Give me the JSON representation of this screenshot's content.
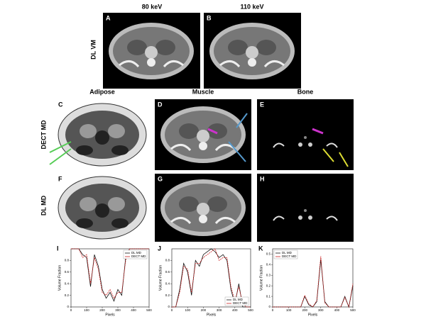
{
  "top_columns": [
    "80 keV",
    "110 keV"
  ],
  "top_row": "DL VM",
  "mid_columns": [
    "Adipose",
    "Muscle",
    "Bone"
  ],
  "mid_rows": [
    "DECT MD",
    "DL MD"
  ],
  "panel_labels": [
    "A",
    "B",
    "C",
    "D",
    "E",
    "F",
    "G",
    "H"
  ],
  "plots": [
    {
      "label": "I",
      "xlabel": "Pixels",
      "ylabel": "Volume Fraction",
      "legend": "top-right",
      "x": [
        0,
        25,
        50,
        75,
        100,
        125,
        150,
        175,
        200,
        225,
        250,
        275,
        300,
        325,
        350,
        375,
        400,
        425,
        450,
        475,
        500
      ],
      "xlim": [
        0,
        500
      ],
      "xticks": [
        0,
        100,
        200,
        300,
        400,
        500
      ],
      "ylim": [
        0,
        1
      ],
      "yticks": [
        0,
        0.2,
        0.4,
        0.6,
        0.8
      ],
      "series": [
        {
          "name": "DL MD",
          "color": "#111111",
          "values": [
            1,
            1,
            1,
            0.9,
            0.85,
            0.35,
            0.9,
            0.7,
            0.3,
            0.15,
            0.25,
            0.1,
            0.3,
            0.2,
            0.85,
            1,
            1,
            1,
            1,
            1,
            1
          ]
        },
        {
          "name": "DECT MD",
          "color": "#cc2222",
          "values": [
            1,
            1,
            1,
            0.85,
            0.9,
            0.4,
            0.85,
            0.65,
            0.25,
            0.2,
            0.3,
            0.15,
            0.25,
            0.25,
            0.8,
            1,
            1,
            1,
            1,
            1,
            1
          ]
        }
      ]
    },
    {
      "label": "J",
      "xlabel": "Pixels",
      "ylabel": "Volume Fraction",
      "legend": "bottom-right",
      "x": [
        0,
        25,
        50,
        75,
        100,
        125,
        150,
        175,
        200,
        225,
        250,
        275,
        300,
        325,
        350,
        375,
        400,
        425,
        450,
        475,
        500
      ],
      "xlim": [
        0,
        500
      ],
      "xticks": [
        0,
        100,
        200,
        300,
        400,
        500
      ],
      "ylim": [
        0,
        1
      ],
      "yticks": [
        0,
        0.2,
        0.4,
        0.6,
        0.8
      ],
      "series": [
        {
          "name": "DL MD",
          "color": "#111111",
          "values": [
            0,
            0,
            0.3,
            0.75,
            0.6,
            0.2,
            0.8,
            0.7,
            0.9,
            0.95,
            1,
            0.95,
            0.85,
            0.9,
            0.8,
            0.3,
            0.05,
            0.4,
            0,
            0,
            0
          ]
        },
        {
          "name": "DECT MD",
          "color": "#cc2222",
          "values": [
            0,
            0,
            0.25,
            0.7,
            0.65,
            0.25,
            0.75,
            0.75,
            0.85,
            0.9,
            0.95,
            1,
            0.8,
            0.85,
            0.85,
            0.35,
            0.1,
            0.35,
            0.05,
            0,
            0
          ]
        }
      ]
    },
    {
      "label": "K",
      "xlabel": "Pixels",
      "ylabel": "Volume Fraction",
      "legend": "top-left",
      "x": [
        0,
        25,
        50,
        75,
        100,
        125,
        150,
        175,
        200,
        225,
        250,
        275,
        300,
        325,
        350,
        375,
        400,
        425,
        450,
        475,
        500
      ],
      "xlim": [
        0,
        500
      ],
      "xticks": [
        0,
        100,
        200,
        300,
        400,
        500
      ],
      "ylim": [
        0,
        0.55
      ],
      "yticks": [
        0,
        0.1,
        0.2,
        0.3,
        0.4,
        0.5
      ],
      "series": [
        {
          "name": "DL MD",
          "color": "#111111",
          "values": [
            0,
            0,
            0,
            0,
            0,
            0,
            0,
            0,
            0.1,
            0.02,
            0,
            0.05,
            0.45,
            0.05,
            0,
            0,
            0,
            0,
            0.1,
            0,
            0.2
          ]
        },
        {
          "name": "DECT MD",
          "color": "#cc2222",
          "values": [
            0,
            0,
            0,
            0,
            0,
            0,
            0,
            0,
            0.11,
            0.03,
            0,
            0.06,
            0.48,
            0.04,
            0,
            0,
            0,
            0,
            0.09,
            0,
            0.22
          ]
        }
      ]
    }
  ]
}
